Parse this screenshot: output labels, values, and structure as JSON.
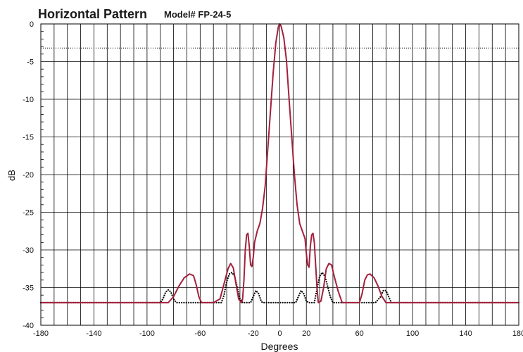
{
  "chart_data": {
    "type": "line",
    "title": "Horizontal Pattern",
    "subtitle": "Model# FP-24-5",
    "xlabel": "Degrees",
    "ylabel": "dB",
    "xlim": [
      -180,
      180
    ],
    "ylim": [
      -40,
      0
    ],
    "x_ticks": [
      -180,
      -140,
      -100,
      -60,
      -20,
      0,
      20,
      60,
      100,
      140,
      180
    ],
    "y_ticks": [
      0,
      -5,
      -10,
      -15,
      -20,
      -25,
      -30,
      -35,
      -40
    ],
    "grid": true,
    "reference_line_y": -3.2,
    "series": [
      {
        "style": "solid",
        "color": "#a3203b",
        "points": [
          [
            -180,
            -37
          ],
          [
            -88,
            -37
          ],
          [
            -84,
            -37
          ],
          [
            -80,
            -36.2
          ],
          [
            -76,
            -34.8
          ],
          [
            -72,
            -33.7
          ],
          [
            -68,
            -33.2
          ],
          [
            -65,
            -33.4
          ],
          [
            -63,
            -34.6
          ],
          [
            -61,
            -36.2
          ],
          [
            -59,
            -37
          ],
          [
            -50,
            -37
          ],
          [
            -45,
            -36.5
          ],
          [
            -42,
            -34.5
          ],
          [
            -39,
            -32.5
          ],
          [
            -37,
            -31.8
          ],
          [
            -35,
            -32.4
          ],
          [
            -33,
            -34.5
          ],
          [
            -31,
            -36.5
          ],
          [
            -29,
            -37
          ],
          [
            -28,
            -36.5
          ],
          [
            -27,
            -34
          ],
          [
            -26,
            -30
          ],
          [
            -25,
            -28
          ],
          [
            -24,
            -27.8
          ],
          [
            -23,
            -29.5
          ],
          [
            -22,
            -32
          ],
          [
            -21,
            -32.2
          ],
          [
            -20,
            -31
          ],
          [
            -19,
            -29
          ],
          [
            -17,
            -27.5
          ],
          [
            -15,
            -26.5
          ],
          [
            -13,
            -24.5
          ],
          [
            -11,
            -21.5
          ],
          [
            -9,
            -16.5
          ],
          [
            -7,
            -11.5
          ],
          [
            -5,
            -6.5
          ],
          [
            -3,
            -2.5
          ],
          [
            -1,
            -0.3
          ],
          [
            0,
            0
          ],
          [
            1,
            -0.3
          ],
          [
            3,
            -1.8
          ],
          [
            5,
            -4.8
          ],
          [
            7,
            -10
          ],
          [
            9,
            -15
          ],
          [
            11,
            -20
          ],
          [
            13,
            -24
          ],
          [
            15,
            -26.5
          ],
          [
            17,
            -27.5
          ],
          [
            19,
            -28.5
          ],
          [
            20,
            -30.5
          ],
          [
            21,
            -32
          ],
          [
            22,
            -32.3
          ],
          [
            23,
            -29.5
          ],
          [
            24,
            -28
          ],
          [
            25,
            -27.8
          ],
          [
            26,
            -29
          ],
          [
            27,
            -32
          ],
          [
            28,
            -35
          ],
          [
            29,
            -37
          ],
          [
            31,
            -36.8
          ],
          [
            33,
            -35
          ],
          [
            35,
            -32.5
          ],
          [
            37,
            -31.8
          ],
          [
            39,
            -32
          ],
          [
            41,
            -33.5
          ],
          [
            44,
            -35.5
          ],
          [
            47,
            -37
          ],
          [
            60,
            -37
          ],
          [
            62,
            -35.8
          ],
          [
            64,
            -34
          ],
          [
            66,
            -33.3
          ],
          [
            68,
            -33.2
          ],
          [
            71,
            -33.7
          ],
          [
            74,
            -34.8
          ],
          [
            77,
            -36.2
          ],
          [
            80,
            -37
          ],
          [
            85,
            -37
          ],
          [
            180,
            -37
          ]
        ]
      },
      {
        "style": "dotted",
        "color": "#000000",
        "points": [
          [
            -180,
            -37
          ],
          [
            -90,
            -37
          ],
          [
            -88,
            -36.5
          ],
          [
            -86,
            -35.6
          ],
          [
            -84,
            -35.3
          ],
          [
            -82,
            -35.6
          ],
          [
            -80,
            -36.5
          ],
          [
            -78,
            -37
          ],
          [
            -44,
            -37
          ],
          [
            -42,
            -36
          ],
          [
            -40,
            -34.2
          ],
          [
            -38,
            -33.2
          ],
          [
            -36,
            -33
          ],
          [
            -34,
            -33.5
          ],
          [
            -32,
            -35
          ],
          [
            -30,
            -36.5
          ],
          [
            -28,
            -37
          ],
          [
            -22,
            -37
          ],
          [
            -20,
            -36.2
          ],
          [
            -18,
            -35.4
          ],
          [
            -16,
            -35.8
          ],
          [
            -14,
            -36.8
          ],
          [
            -13,
            -37
          ],
          [
            12,
            -37
          ],
          [
            14,
            -36.2
          ],
          [
            16,
            -35.4
          ],
          [
            18,
            -35.8
          ],
          [
            20,
            -36.8
          ],
          [
            22,
            -37
          ],
          [
            26,
            -37
          ],
          [
            28,
            -35.2
          ],
          [
            30,
            -33.5
          ],
          [
            32,
            -33
          ],
          [
            34,
            -33.5
          ],
          [
            36,
            -34.8
          ],
          [
            38,
            -36.2
          ],
          [
            40,
            -37
          ],
          [
            72,
            -37
          ],
          [
            76,
            -36.2
          ],
          [
            78,
            -35.4
          ],
          [
            80,
            -35.4
          ],
          [
            82,
            -36.2
          ],
          [
            84,
            -37
          ],
          [
            180,
            -37
          ]
        ]
      }
    ]
  }
}
